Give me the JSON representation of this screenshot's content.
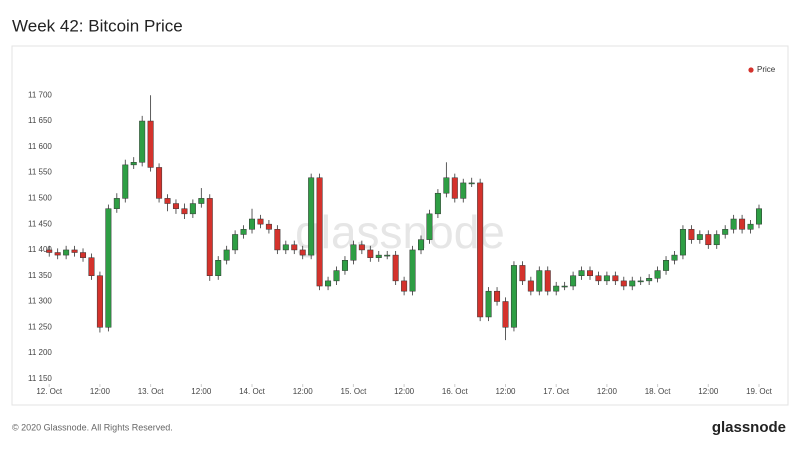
{
  "chart_data": {
    "type": "candlestick",
    "title": "Week 42: Bitcoin Price",
    "watermark": "glassnode",
    "footer": "© 2020 Glassnode. All Rights Reserved.",
    "logo": "glassnode",
    "legend_position": "top-right",
    "up_color": "#2e9e44",
    "down_color": "#d4322c",
    "series": [
      {
        "name": "Price",
        "color": "#d4322c",
        "x": [
          0,
          2,
          4,
          6,
          8,
          10,
          12,
          14,
          16,
          18,
          20,
          22,
          24,
          26,
          28,
          30,
          32,
          34,
          36,
          38,
          40,
          42,
          44,
          46,
          48,
          50,
          52,
          54,
          56,
          58,
          60,
          62,
          64,
          66,
          68,
          70,
          72,
          74,
          76,
          78,
          80,
          82,
          84,
          86,
          88,
          90,
          92,
          94,
          96,
          98,
          100,
          102,
          104,
          106,
          108,
          110,
          112,
          114,
          116,
          118,
          120,
          122,
          124,
          126,
          128,
          130,
          132,
          134,
          136,
          138,
          140,
          142,
          144,
          146,
          148,
          150,
          152,
          154,
          156,
          158,
          160,
          162,
          164,
          166,
          168
        ],
        "open": [
          11400,
          11395,
          11390,
          11400,
          11395,
          11385,
          11350,
          11250,
          11480,
          11500,
          11565,
          11570,
          11650,
          11560,
          11500,
          11490,
          11480,
          11470,
          11490,
          11500,
          11350,
          11380,
          11400,
          11430,
          11440,
          11460,
          11450,
          11440,
          11400,
          11410,
          11400,
          11390,
          11540,
          11330,
          11340,
          11360,
          11380,
          11410,
          11400,
          11385,
          11390,
          11390,
          11340,
          11320,
          11400,
          11420,
          11470,
          11510,
          11540,
          11500,
          11530,
          11530,
          11270,
          11320,
          11300,
          11250,
          11370,
          11340,
          11320,
          11360,
          11320,
          11330,
          11330,
          11350,
          11360,
          11350,
          11340,
          11350,
          11340,
          11330,
          11340,
          11340,
          11345,
          11360,
          11380,
          11390,
          11440,
          11420,
          11430,
          11410,
          11430,
          11440,
          11460,
          11440,
          11450
        ],
        "high": [
          11408,
          11403,
          11408,
          11408,
          11403,
          11393,
          11358,
          11488,
          11510,
          11575,
          11580,
          11660,
          11700,
          11568,
          11508,
          11498,
          11490,
          11498,
          11520,
          11508,
          11388,
          11408,
          11438,
          11448,
          11480,
          11468,
          11458,
          11448,
          11418,
          11418,
          11408,
          11548,
          11548,
          11348,
          11368,
          11388,
          11418,
          11418,
          11408,
          11398,
          11398,
          11398,
          11348,
          11408,
          11428,
          11478,
          11518,
          11570,
          11548,
          11538,
          11540,
          11538,
          11328,
          11328,
          11308,
          11378,
          11378,
          11348,
          11368,
          11368,
          11338,
          11338,
          11358,
          11368,
          11368,
          11358,
          11358,
          11358,
          11348,
          11348,
          11348,
          11353,
          11368,
          11388,
          11398,
          11448,
          11448,
          11438,
          11438,
          11438,
          11448,
          11468,
          11468,
          11458,
          11488
        ],
        "low": [
          11387,
          11382,
          11382,
          11387,
          11377,
          11342,
          11240,
          11242,
          11472,
          11492,
          11557,
          11562,
          11552,
          11492,
          11475,
          11470,
          11460,
          11462,
          11482,
          11340,
          11342,
          11372,
          11392,
          11422,
          11432,
          11442,
          11432,
          11392,
          11392,
          11392,
          11382,
          11382,
          11322,
          11322,
          11332,
          11352,
          11372,
          11392,
          11377,
          11377,
          11382,
          11332,
          11312,
          11312,
          11392,
          11412,
          11462,
          11502,
          11492,
          11492,
          11522,
          11262,
          11262,
          11292,
          11225,
          11242,
          11332,
          11312,
          11312,
          11312,
          11312,
          11322,
          11322,
          11342,
          11342,
          11332,
          11332,
          11332,
          11322,
          11322,
          11332,
          11332,
          11337,
          11352,
          11372,
          11382,
          11412,
          11412,
          11402,
          11402,
          11422,
          11432,
          11432,
          11432,
          11442
        ],
        "close": [
          11395,
          11390,
          11400,
          11395,
          11385,
          11350,
          11250,
          11480,
          11500,
          11565,
          11570,
          11650,
          11560,
          11500,
          11490,
          11480,
          11470,
          11490,
          11500,
          11350,
          11380,
          11400,
          11430,
          11440,
          11460,
          11450,
          11440,
          11400,
          11410,
          11400,
          11390,
          11540,
          11330,
          11340,
          11360,
          11380,
          11410,
          11400,
          11385,
          11390,
          11390,
          11340,
          11320,
          11400,
          11420,
          11470,
          11510,
          11540,
          11500,
          11530,
          11530,
          11270,
          11320,
          11300,
          11250,
          11370,
          11340,
          11320,
          11360,
          11320,
          11330,
          11330,
          11350,
          11360,
          11350,
          11340,
          11350,
          11340,
          11330,
          11340,
          11340,
          11345,
          11360,
          11380,
          11390,
          11440,
          11420,
          11430,
          11410,
          11430,
          11440,
          11460,
          11440,
          11450,
          11480
        ]
      }
    ],
    "xlim": [
      -1,
      172.5
    ],
    "xticks": [
      {
        "value": 0,
        "label": "12. Oct"
      },
      {
        "value": 12,
        "label": "12:00"
      },
      {
        "value": 24,
        "label": "13. Oct"
      },
      {
        "value": 36,
        "label": "12:00"
      },
      {
        "value": 48,
        "label": "14. Oct"
      },
      {
        "value": 60,
        "label": "12:00"
      },
      {
        "value": 72,
        "label": "15. Oct"
      },
      {
        "value": 84,
        "label": "12:00"
      },
      {
        "value": 96,
        "label": "16. Oct"
      },
      {
        "value": 108,
        "label": "12:00"
      },
      {
        "value": 120,
        "label": "17. Oct"
      },
      {
        "value": 132,
        "label": "12:00"
      },
      {
        "value": 144,
        "label": "18. Oct"
      },
      {
        "value": 156,
        "label": "12:00"
      },
      {
        "value": 168,
        "label": "19. Oct"
      }
    ],
    "ylim": [
      11140,
      11780
    ],
    "yticks": [
      {
        "value": 11150,
        "label": "11 150"
      },
      {
        "value": 11200,
        "label": "11 200"
      },
      {
        "value": 11250,
        "label": "11 250"
      },
      {
        "value": 11300,
        "label": "11 300"
      },
      {
        "value": 11350,
        "label": "11 350"
      },
      {
        "value": 11400,
        "label": "11 400"
      },
      {
        "value": 11450,
        "label": "11 450"
      },
      {
        "value": 11500,
        "label": "11 500"
      },
      {
        "value": 11550,
        "label": "11 550"
      },
      {
        "value": 11600,
        "label": "11 600"
      },
      {
        "value": 11650,
        "label": "11 650"
      },
      {
        "value": 11700,
        "label": "11 700"
      }
    ]
  }
}
